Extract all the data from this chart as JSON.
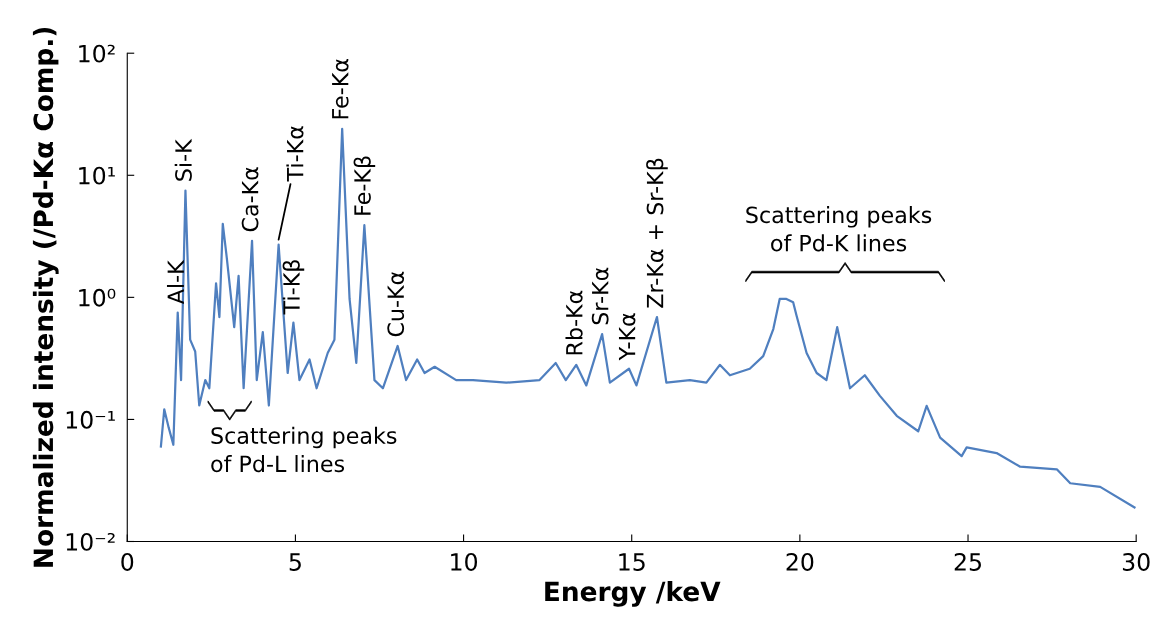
{
  "chart_data": {
    "type": "line",
    "xlabel": "Energy /keV",
    "ylabel": "Normalized intensity (/Pd-Kα Comp.)",
    "x": [
      1.0,
      1.1,
      1.23,
      1.37,
      1.5,
      1.6,
      1.73,
      1.87,
      2.02,
      2.14,
      2.32,
      2.44,
      2.64,
      2.74,
      2.84,
      2.96,
      3.18,
      3.31,
      3.46,
      3.71,
      3.85,
      4.03,
      4.21,
      4.5,
      4.77,
      4.94,
      5.12,
      5.42,
      5.63,
      5.96,
      6.16,
      6.39,
      6.61,
      6.81,
      7.05,
      7.35,
      7.6,
      8.04,
      8.29,
      8.62,
      8.84,
      9.14,
      9.78,
      10.28,
      11.27,
      12.26,
      12.74,
      13.04,
      13.35,
      13.65,
      14.12,
      14.35,
      14.92,
      15.14,
      15.75,
      16.03,
      16.73,
      17.22,
      17.62,
      17.92,
      18.51,
      18.91,
      19.21,
      19.4,
      19.6,
      19.8,
      19.9,
      20.2,
      20.5,
      20.79,
      21.11,
      21.49,
      21.93,
      22.38,
      22.88,
      23.52,
      23.77,
      24.17,
      24.81,
      24.96,
      25.85,
      26.55,
      27.64,
      28.04,
      28.93,
      29.95
    ],
    "series": [
      {
        "color": "#4f7fbf",
        "values": [
          0.06,
          0.121,
          0.086,
          0.062,
          0.75,
          0.21,
          7.5,
          0.45,
          0.36,
          0.13,
          0.21,
          0.18,
          1.3,
          0.69,
          4.0,
          2.1,
          0.57,
          1.5,
          0.18,
          2.9,
          0.21,
          0.52,
          0.13,
          2.7,
          0.24,
          0.62,
          0.21,
          0.31,
          0.18,
          0.35,
          0.45,
          24,
          0.97,
          0.29,
          3.9,
          0.21,
          0.18,
          0.4,
          0.21,
          0.31,
          0.24,
          0.27,
          0.21,
          0.21,
          0.2,
          0.21,
          0.29,
          0.21,
          0.28,
          0.19,
          0.5,
          0.2,
          0.26,
          0.19,
          0.69,
          0.2,
          0.21,
          0.2,
          0.28,
          0.23,
          0.26,
          0.33,
          0.55,
          0.97,
          0.97,
          0.91,
          0.71,
          0.35,
          0.24,
          0.21,
          0.57,
          0.18,
          0.23,
          0.156,
          0.107,
          0.08,
          0.129,
          0.071,
          0.05,
          0.059,
          0.053,
          0.041,
          0.039,
          0.03,
          0.028,
          0.019
        ]
      }
    ],
    "log": "y",
    "xlim": [
      0,
      30
    ],
    "ylim": [
      0.01,
      100
    ],
    "xticks": [
      0,
      5,
      10,
      15,
      20,
      25,
      30
    ],
    "yticks": [
      {
        "value": 0.01,
        "label": "10⁻²"
      },
      {
        "value": 0.1,
        "label": "10⁻¹"
      },
      {
        "value": 1,
        "label": "10⁰"
      },
      {
        "value": 10,
        "label": "10¹"
      },
      {
        "value": 100,
        "label": "10²"
      }
    ],
    "grid": false,
    "legend": false,
    "annotations": [
      {
        "text": "Al-K",
        "x": 1.5,
        "y": 0.75
      },
      {
        "text": "Si-K",
        "x": 1.73,
        "y": 7.5
      },
      {
        "text": "Ca-Kα",
        "x": 3.71,
        "y": 2.9
      },
      {
        "text": "Ti-Kα",
        "x": 4.5,
        "y": 2.7
      },
      {
        "text": "Ti-Kβ",
        "x": 4.94,
        "y": 0.62
      },
      {
        "text": "Fe-Kα",
        "x": 6.39,
        "y": 24
      },
      {
        "text": "Fe-Kβ",
        "x": 7.05,
        "y": 3.9
      },
      {
        "text": "Cu-Kα",
        "x": 8.04,
        "y": 0.4
      },
      {
        "text": "Rb-Kα",
        "x": 13.35,
        "y": 0.28
      },
      {
        "text": "Sr-Kα",
        "x": 14.12,
        "y": 0.5
      },
      {
        "text": "Y-Kα",
        "x": 14.92,
        "y": 0.26
      },
      {
        "text": "Zr-Kα + Sr-Kβ",
        "x": 15.75,
        "y": 0.69
      },
      "Scattering peaks\nof Pd-L lines",
      "Scattering peaks\nof Pd-K lines"
    ]
  }
}
